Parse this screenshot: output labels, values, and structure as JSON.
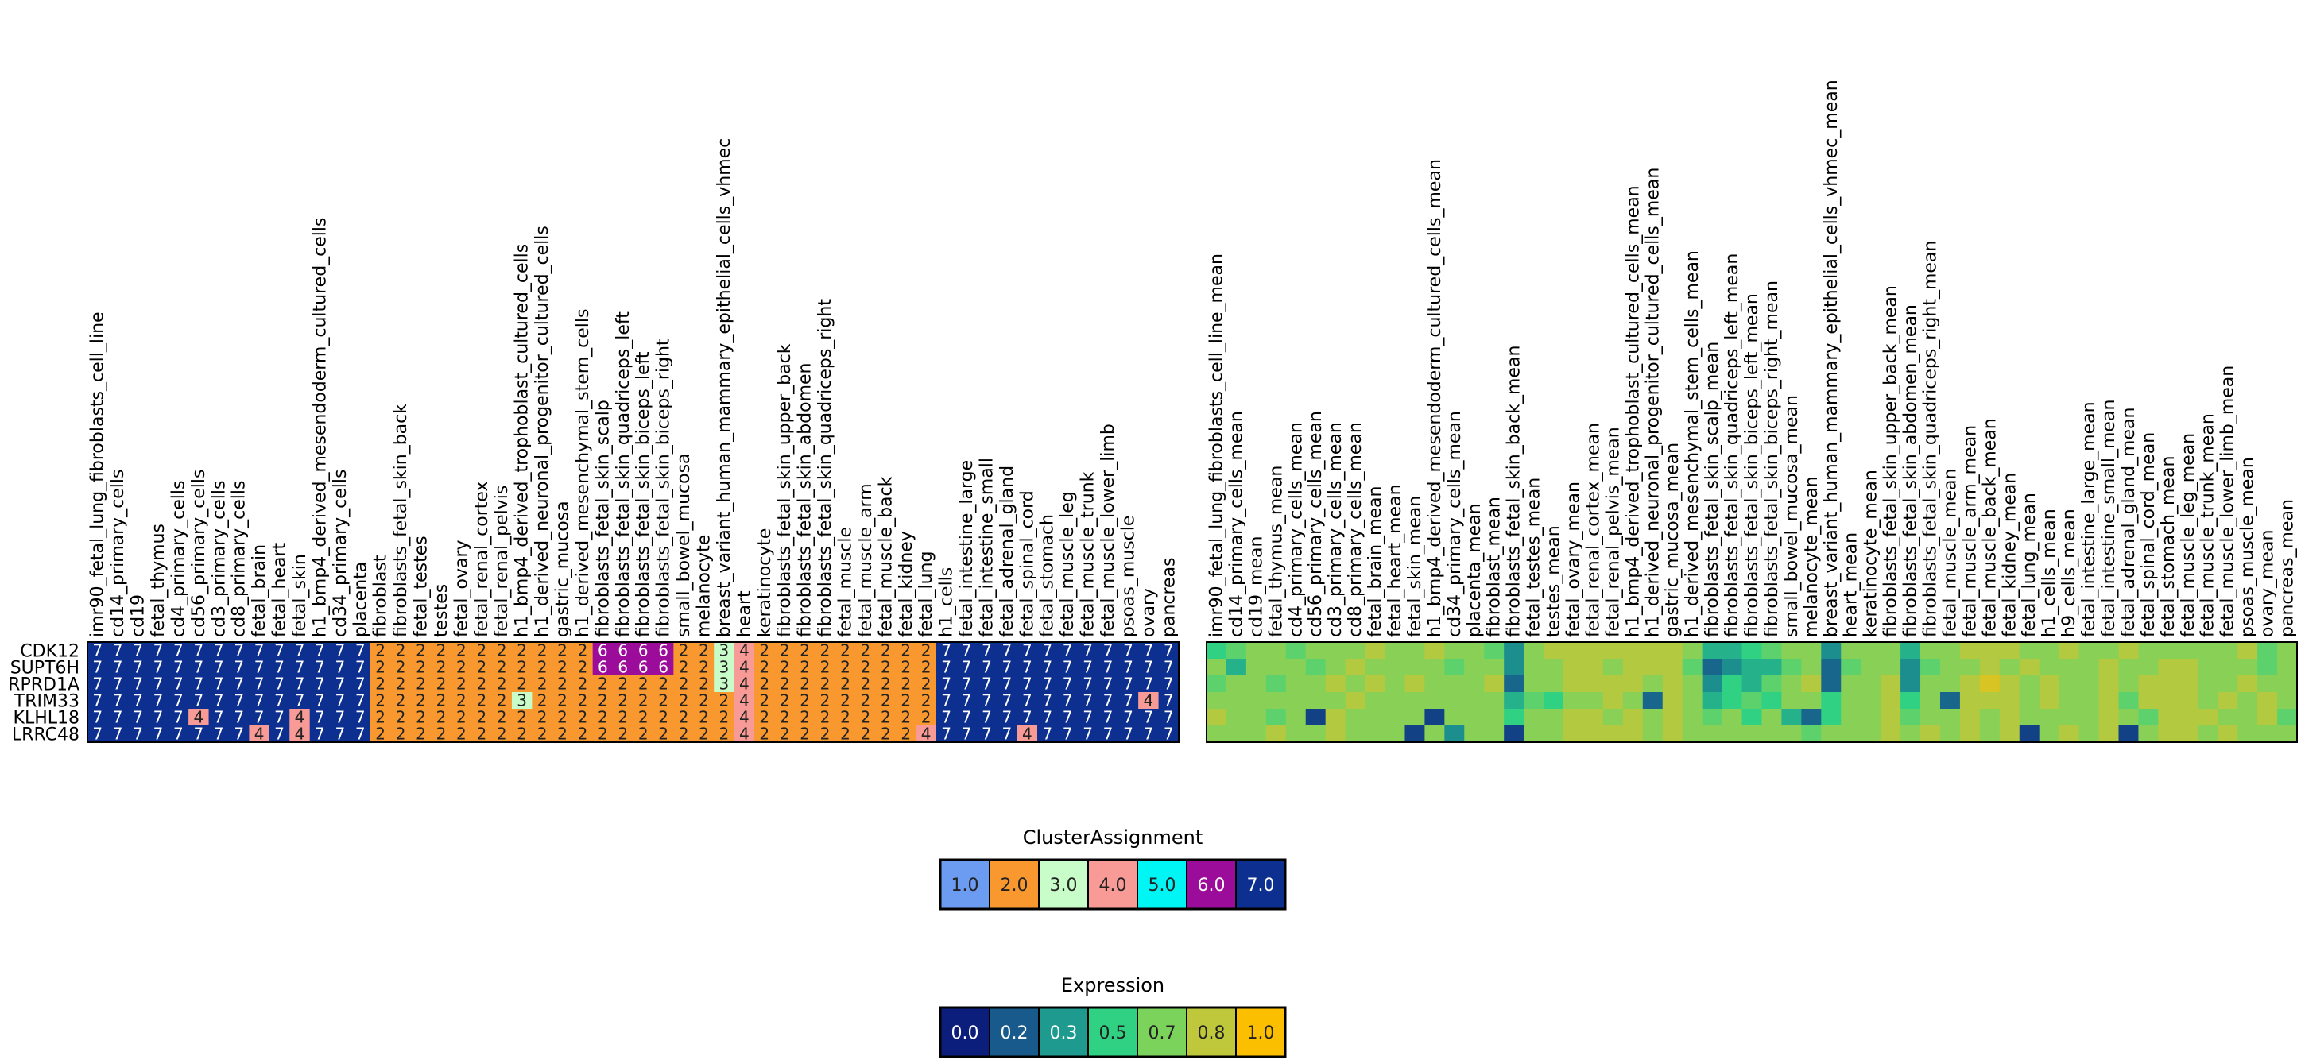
{
  "chart_data": {
    "type": "heatmap",
    "genes": [
      "CDK12",
      "SUPT6H",
      "RPRD1A",
      "TRIM33",
      "KLHL18",
      "LRRC48"
    ],
    "left_heatmap": {
      "name": "cluster-assignment-heatmap",
      "columns": [
        "imr90_fetal_lung_fibroblasts_cell_line",
        "cd14_primary_cells",
        "cd19",
        "fetal_thymus",
        "cd4_primary_cells",
        "cd56_primary_cells",
        "cd3_primary_cells",
        "cd8_primary_cells",
        "fetal_brain",
        "fetal_heart",
        "fetal_skin",
        "h1_bmp4_derived_mesendoderm_cultured_cells",
        "cd34_primary_cells",
        "placenta",
        "fibroblast",
        "fibroblasts_fetal_skin_back",
        "fetal_testes",
        "testes",
        "fetal_ovary",
        "fetal_renal_cortex",
        "fetal_renal_pelvis",
        "h1_bmp4_derived_trophoblast_cultured_cells",
        "h1_derived_neuronal_progenitor_cultured_cells",
        "gastric_mucosa",
        "h1_derived_mesenchymal_stem_cells",
        "fibroblasts_fetal_skin_scalp",
        "fibroblasts_fetal_skin_quadriceps_left",
        "fibroblasts_fetal_skin_biceps_left",
        "fibroblasts_fetal_skin_biceps_right",
        "small_bowel_mucosa",
        "melanocyte",
        "breast_variant_human_mammary_epithelial_cells_vhmec",
        "heart",
        "keratinocyte",
        "fibroblasts_fetal_skin_upper_back",
        "fibroblasts_fetal_skin_abdomen",
        "fibroblasts_fetal_skin_quadriceps_right",
        "fetal_muscle",
        "fetal_muscle_arm",
        "fetal_muscle_back",
        "fetal_kidney",
        "fetal_lung",
        "h1_cells",
        "fetal_intestine_large",
        "fetal_intestine_small",
        "fetal_adrenal_gland",
        "fetal_spinal_cord",
        "fetal_stomach",
        "fetal_muscle_leg",
        "fetal_muscle_trunk",
        "fetal_muscle_lower_limb",
        "psoas_muscle",
        "ovary",
        "pancreas"
      ],
      "values": [
        [
          7,
          7,
          7,
          7,
          7,
          7,
          7,
          7,
          7,
          7,
          7,
          7,
          7,
          7,
          2,
          2,
          2,
          2,
          2,
          2,
          2,
          2,
          2,
          2,
          2,
          6,
          6,
          6,
          6,
          2,
          2,
          3,
          4,
          2,
          2,
          2,
          2,
          2,
          2,
          2,
          2,
          2,
          7,
          7,
          7,
          7,
          7,
          7,
          7,
          7,
          7,
          7,
          7,
          7
        ],
        [
          7,
          7,
          7,
          7,
          7,
          7,
          7,
          7,
          7,
          7,
          7,
          7,
          7,
          7,
          2,
          2,
          2,
          2,
          2,
          2,
          2,
          2,
          2,
          2,
          2,
          6,
          6,
          6,
          6,
          2,
          2,
          3,
          4,
          2,
          2,
          2,
          2,
          2,
          2,
          2,
          2,
          2,
          7,
          7,
          7,
          7,
          7,
          7,
          7,
          7,
          7,
          7,
          7,
          7
        ],
        [
          7,
          7,
          7,
          7,
          7,
          7,
          7,
          7,
          7,
          7,
          7,
          7,
          7,
          7,
          2,
          2,
          2,
          2,
          2,
          2,
          2,
          2,
          2,
          2,
          2,
          2,
          2,
          2,
          2,
          2,
          2,
          3,
          4,
          2,
          2,
          2,
          2,
          2,
          2,
          2,
          2,
          2,
          7,
          7,
          7,
          7,
          7,
          7,
          7,
          7,
          7,
          7,
          7,
          7
        ],
        [
          7,
          7,
          7,
          7,
          7,
          7,
          7,
          7,
          7,
          7,
          7,
          7,
          7,
          7,
          2,
          2,
          2,
          2,
          2,
          2,
          2,
          3,
          2,
          2,
          2,
          2,
          2,
          2,
          2,
          2,
          2,
          2,
          4,
          2,
          2,
          2,
          2,
          2,
          2,
          2,
          2,
          2,
          7,
          7,
          7,
          7,
          7,
          7,
          7,
          7,
          7,
          7,
          4,
          7
        ],
        [
          7,
          7,
          7,
          7,
          7,
          4,
          7,
          7,
          7,
          7,
          4,
          7,
          7,
          7,
          2,
          2,
          2,
          2,
          2,
          2,
          2,
          2,
          2,
          2,
          2,
          2,
          2,
          2,
          2,
          2,
          2,
          2,
          4,
          2,
          2,
          2,
          2,
          2,
          2,
          2,
          2,
          2,
          7,
          7,
          7,
          7,
          7,
          7,
          7,
          7,
          7,
          7,
          7,
          7
        ],
        [
          7,
          7,
          7,
          7,
          7,
          7,
          7,
          7,
          4,
          7,
          4,
          7,
          7,
          7,
          2,
          2,
          2,
          2,
          2,
          2,
          2,
          2,
          2,
          2,
          2,
          2,
          2,
          2,
          2,
          2,
          2,
          2,
          4,
          2,
          2,
          2,
          2,
          2,
          2,
          2,
          2,
          4,
          7,
          7,
          7,
          7,
          4,
          7,
          7,
          7,
          7,
          7,
          7,
          7
        ]
      ]
    },
    "right_heatmap": {
      "name": "expression-heatmap",
      "columns": [
        "imr90_fetal_lung_fibroblasts_cell_line_mean",
        "cd14_primary_cells_mean",
        "cd19_mean",
        "fetal_thymus_mean",
        "cd4_primary_cells_mean",
        "cd56_primary_cells_mean",
        "cd3_primary_cells_mean",
        "cd8_primary_cells_mean",
        "fetal_brain_mean",
        "fetal_heart_mean",
        "fetal_skin_mean",
        "h1_bmp4_derived_mesendoderm_cultured_cells_mean",
        "cd34_primary_cells_mean",
        "placenta_mean",
        "fibroblast_mean",
        "fibroblasts_fetal_skin_back_mean",
        "fetal_testes_mean",
        "testes_mean",
        "fetal_ovary_mean",
        "fetal_renal_cortex_mean",
        "fetal_renal_pelvis_mean",
        "h1_bmp4_derived_trophoblast_cultured_cells_mean",
        "h1_derived_neuronal_progenitor_cultured_cells_mean",
        "gastric_mucosa_mean",
        "h1_derived_mesenchymal_stem_cells_mean",
        "fibroblasts_fetal_skin_scalp_mean",
        "fibroblasts_fetal_skin_quadriceps_left_mean",
        "fibroblasts_fetal_skin_biceps_left_mean",
        "fibroblasts_fetal_skin_biceps_right_mean",
        "small_bowel_mucosa_mean",
        "melanocyte_mean",
        "breast_variant_human_mammary_epithelial_cells_vhmec_mean",
        "heart_mean",
        "keratinocyte_mean",
        "fibroblasts_fetal_skin_upper_back_mean",
        "fibroblasts_fetal_skin_abdomen_mean",
        "fibroblasts_fetal_skin_quadriceps_right_mean",
        "fetal_muscle_mean",
        "fetal_muscle_arm_mean",
        "fetal_muscle_back_mean",
        "fetal_kidney_mean",
        "fetal_lung_mean",
        "h1_cells_mean",
        "h9_cells_mean",
        "fetal_intestine_large_mean",
        "fetal_intestine_small_mean",
        "fetal_adrenal_gland_mean",
        "fetal_spinal_cord_mean",
        "fetal_stomach_mean",
        "fetal_muscle_leg_mean",
        "fetal_muscle_trunk_mean",
        "fetal_muscle_lower_limb_mean",
        "psoas_muscle_mean",
        "ovary_mean",
        "pancreas_mean"
      ],
      "values": [
        [
          0.5,
          0.6,
          0.7,
          0.7,
          0.6,
          0.7,
          0.7,
          0.7,
          0.8,
          0.7,
          0.7,
          0.8,
          0.7,
          0.7,
          0.6,
          0.3,
          0.7,
          0.8,
          0.8,
          0.8,
          0.8,
          0.8,
          0.8,
          0.8,
          0.7,
          0.4,
          0.4,
          0.5,
          0.6,
          0.7,
          0.7,
          0.3,
          0.7,
          0.7,
          0.7,
          0.4,
          0.7,
          0.7,
          0.8,
          0.8,
          0.8,
          0.7,
          0.7,
          0.8,
          0.7,
          0.7,
          0.8,
          0.7,
          0.7,
          0.7,
          0.7,
          0.7,
          0.8,
          0.6,
          0.7
        ],
        [
          0.7,
          0.4,
          0.7,
          0.7,
          0.7,
          0.6,
          0.7,
          0.8,
          0.7,
          0.7,
          0.7,
          0.7,
          0.6,
          0.7,
          0.7,
          0.3,
          0.7,
          0.7,
          0.8,
          0.8,
          0.7,
          0.8,
          0.8,
          0.8,
          0.6,
          0.2,
          0.3,
          0.4,
          0.4,
          0.6,
          0.7,
          0.2,
          0.6,
          0.7,
          0.7,
          0.3,
          0.6,
          0.7,
          0.7,
          0.8,
          0.7,
          0.8,
          0.7,
          0.7,
          0.7,
          0.8,
          0.7,
          0.7,
          0.8,
          0.8,
          0.7,
          0.7,
          0.7,
          0.6,
          0.7
        ],
        [
          0.6,
          0.7,
          0.7,
          0.6,
          0.7,
          0.7,
          0.8,
          0.7,
          0.8,
          0.7,
          0.8,
          0.7,
          0.7,
          0.7,
          0.8,
          0.2,
          0.7,
          0.7,
          0.8,
          0.8,
          0.8,
          0.8,
          0.7,
          0.8,
          0.7,
          0.3,
          0.5,
          0.4,
          0.6,
          0.7,
          0.8,
          0.2,
          0.7,
          0.7,
          0.8,
          0.3,
          0.7,
          0.7,
          0.8,
          0.9,
          0.8,
          0.7,
          0.8,
          0.7,
          0.7,
          0.8,
          0.7,
          0.8,
          0.8,
          0.8,
          0.7,
          0.7,
          0.8,
          0.7,
          0.7
        ],
        [
          0.7,
          0.7,
          0.7,
          0.7,
          0.7,
          0.7,
          0.7,
          0.8,
          0.7,
          0.7,
          0.7,
          0.7,
          0.7,
          0.7,
          0.7,
          0.4,
          0.6,
          0.5,
          0.7,
          0.7,
          0.8,
          0.7,
          0.2,
          0.8,
          0.7,
          0.4,
          0.5,
          0.6,
          0.5,
          0.7,
          0.7,
          0.5,
          0.7,
          0.7,
          0.8,
          0.5,
          0.7,
          0.2,
          0.8,
          0.8,
          0.8,
          0.7,
          0.8,
          0.7,
          0.7,
          0.8,
          0.6,
          0.8,
          0.8,
          0.8,
          0.7,
          0.8,
          0.7,
          0.8,
          0.7
        ],
        [
          0.8,
          0.7,
          0.7,
          0.6,
          0.7,
          0.1,
          0.8,
          0.7,
          0.7,
          0.7,
          0.7,
          0.1,
          0.7,
          0.7,
          0.7,
          0.5,
          0.7,
          0.7,
          0.8,
          0.8,
          0.7,
          0.8,
          0.7,
          0.8,
          0.7,
          0.6,
          0.7,
          0.5,
          0.7,
          0.4,
          0.2,
          0.5,
          0.7,
          0.7,
          0.8,
          0.6,
          0.7,
          0.7,
          0.8,
          0.7,
          0.8,
          0.7,
          0.7,
          0.7,
          0.7,
          0.8,
          0.7,
          0.6,
          0.8,
          0.8,
          0.8,
          0.7,
          0.7,
          0.8,
          0.6
        ],
        [
          0.7,
          0.7,
          0.7,
          0.8,
          0.7,
          0.7,
          0.8,
          0.7,
          0.7,
          0.7,
          0.1,
          0.7,
          0.3,
          0.7,
          0.7,
          0.1,
          0.7,
          0.7,
          0.8,
          0.8,
          0.8,
          0.8,
          0.7,
          0.8,
          0.7,
          0.7,
          0.7,
          0.7,
          0.7,
          0.7,
          0.6,
          0.7,
          0.7,
          0.7,
          0.8,
          0.7,
          0.8,
          0.7,
          0.8,
          0.7,
          0.8,
          0.1,
          0.7,
          0.8,
          0.7,
          0.8,
          0.1,
          0.7,
          0.8,
          0.8,
          0.7,
          0.8,
          0.7,
          0.7,
          0.7
        ]
      ]
    },
    "cluster_legend": {
      "title": "ClusterAssignment",
      "labels": [
        "1.0",
        "2.0",
        "3.0",
        "4.0",
        "5.0",
        "6.0",
        "7.0"
      ],
      "colors": [
        "#6c9bf2",
        "#f8982e",
        "#c8fcc8",
        "#f89b96",
        "#00f5f5",
        "#9c0c9a",
        "#0d2f8f"
      ]
    },
    "expression_legend": {
      "title": "Expression",
      "labels": [
        "0.0",
        "0.2",
        "0.3",
        "0.5",
        "0.7",
        "0.8",
        "1.0"
      ],
      "colors": [
        "#0b1e7c",
        "#185a8c",
        "#1e9a8e",
        "#30d183",
        "#7cd35c",
        "#bfc73a",
        "#fbbf00"
      ]
    }
  }
}
